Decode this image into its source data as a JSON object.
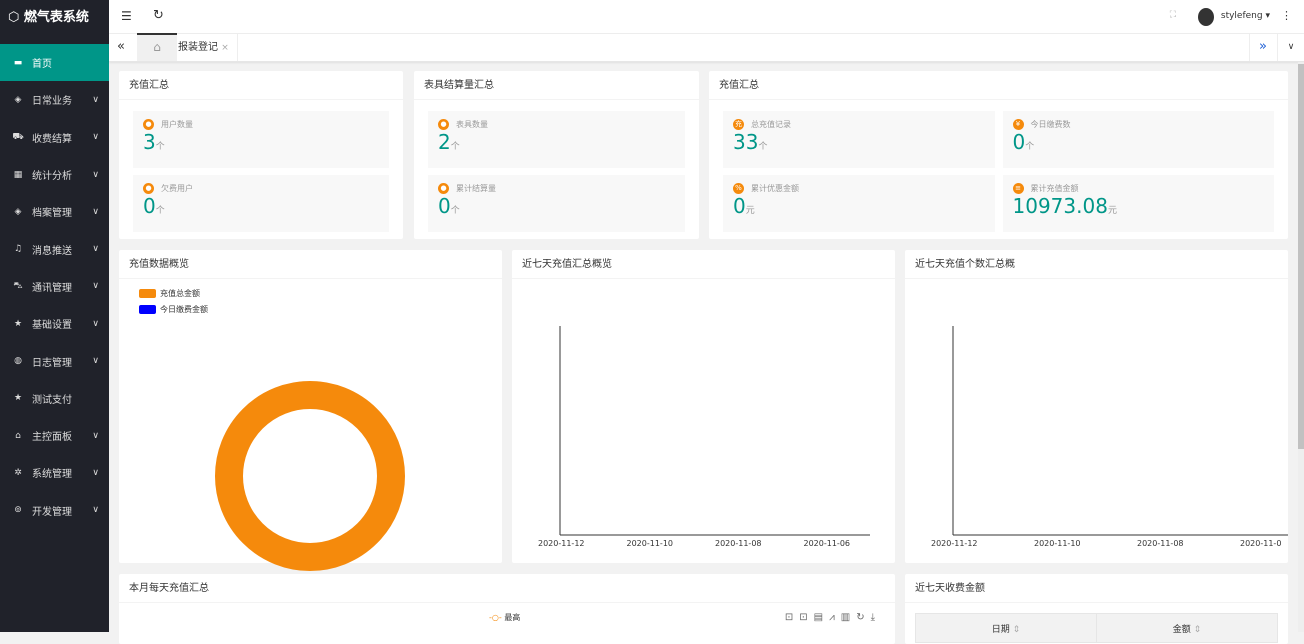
{
  "app": {
    "title": "燃气表系统",
    "user": "stylefeng"
  },
  "sidebar": {
    "items": [
      {
        "label": "首页",
        "icon": "monitor-icon",
        "active": true
      },
      {
        "label": "日常业务",
        "icon": "layers-icon"
      },
      {
        "label": "收费结算",
        "icon": "cart-icon"
      },
      {
        "label": "统计分析",
        "icon": "table-icon"
      },
      {
        "label": "档案管理",
        "icon": "layers-icon"
      },
      {
        "label": "消息推送",
        "icon": "bell-icon"
      },
      {
        "label": "通讯管理",
        "icon": "car-icon"
      },
      {
        "label": "基础设置",
        "icon": "star-icon"
      },
      {
        "label": "日志管理",
        "icon": "log-icon"
      },
      {
        "label": "测试支付",
        "icon": "star-icon"
      },
      {
        "label": "主控面板",
        "icon": "home-icon"
      },
      {
        "label": "系统管理",
        "icon": "gear-icon"
      },
      {
        "label": "开发管理",
        "icon": "dev-icon"
      }
    ]
  },
  "tabs": [
    {
      "label": "报装登记"
    }
  ],
  "cards": {
    "c1": {
      "title": "充值汇总",
      "stats": [
        {
          "label": "用户数量",
          "value": "3",
          "unit": "个"
        },
        {
          "label": "欠费用户",
          "value": "0",
          "unit": "个"
        }
      ]
    },
    "c2": {
      "title": "表具结算量汇总",
      "stats": [
        {
          "label": "表具数量",
          "value": "2",
          "unit": "个"
        },
        {
          "label": "累计结算量",
          "value": "0",
          "unit": "个"
        }
      ]
    },
    "c3": {
      "title": "充值汇总",
      "stats": [
        {
          "label": "总充值记录",
          "value": "33",
          "unit": "个",
          "badge": "充"
        },
        {
          "label": "今日缴费数",
          "value": "0",
          "unit": "个",
          "badge": "¥"
        },
        {
          "label": "累计优惠金额",
          "value": "0",
          "unit": "元",
          "badge": "%"
        },
        {
          "label": "累计充值金额",
          "value": "10973.08",
          "unit": "元",
          "badge": "≡"
        }
      ]
    }
  },
  "charts": {
    "pie": {
      "title": "充值数据概览",
      "legend": [
        "充值总金额",
        "今日缴费金额"
      ],
      "colors": [
        "#f58a0c",
        "#0000ff"
      ]
    },
    "line1": {
      "title": "近七天充值汇总概览",
      "ticks": [
        "2020-11-12",
        "2020-11-10",
        "2020-11-08",
        "2020-11-06"
      ]
    },
    "line2": {
      "title": "近七天充值个数汇总概",
      "ticks": [
        "2020-11-12",
        "2020-11-10",
        "2020-11-08",
        "2020-11-0"
      ]
    },
    "month": {
      "title": "本月每天充值汇总",
      "legend": "最高"
    },
    "table": {
      "title": "近七天收费金额",
      "columns": [
        "日期",
        "金额"
      ]
    }
  },
  "chart_data": [
    {
      "type": "pie",
      "title": "充值数据概览",
      "categories": [
        "充值总金额",
        "今日缴费金额"
      ],
      "values": [
        10973.08,
        0
      ]
    },
    {
      "type": "line",
      "title": "近七天充值汇总概览",
      "x": [
        "2020-11-12",
        "2020-11-10",
        "2020-11-08",
        "2020-11-06"
      ],
      "series": []
    },
    {
      "type": "line",
      "title": "近七天充值个数汇总概",
      "x": [
        "2020-11-12",
        "2020-11-10",
        "2020-11-08",
        "2020-11-0"
      ],
      "series": []
    }
  ]
}
